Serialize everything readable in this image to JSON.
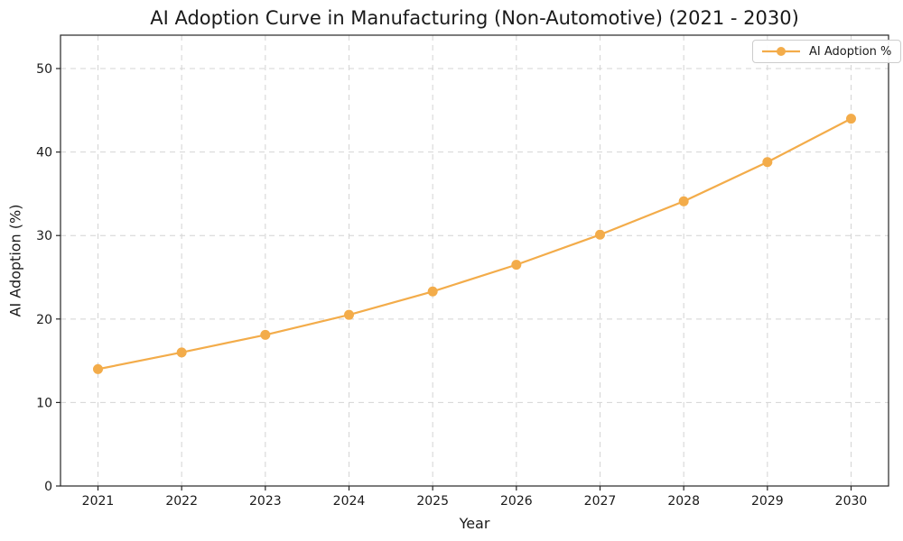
{
  "colors": {
    "line": "#f3ac4a",
    "grid": "#d4d4d4",
    "spine": "#262626",
    "text": "#1a1a1a"
  },
  "legend": {
    "label": "AI Adoption %",
    "position": "upper right"
  },
  "chart_data": {
    "type": "line",
    "title": "AI Adoption Curve in Manufacturing (Non-Automotive) (2021 - 2030)",
    "xlabel": "Year",
    "ylabel": "AI Adoption (%)",
    "x": [
      2021,
      2022,
      2023,
      2024,
      2025,
      2026,
      2027,
      2028,
      2029,
      2030
    ],
    "series": [
      {
        "name": "AI Adoption %",
        "values": [
          14.0,
          16.0,
          18.1,
          20.5,
          23.3,
          26.5,
          30.1,
          34.1,
          38.8,
          44.0
        ]
      }
    ],
    "ylim": [
      0,
      54
    ],
    "yticks": [
      0,
      10,
      20,
      30,
      40,
      50
    ],
    "grid": true,
    "grid_style": "dashed",
    "marker": "circle",
    "legend_position": "upper right"
  }
}
